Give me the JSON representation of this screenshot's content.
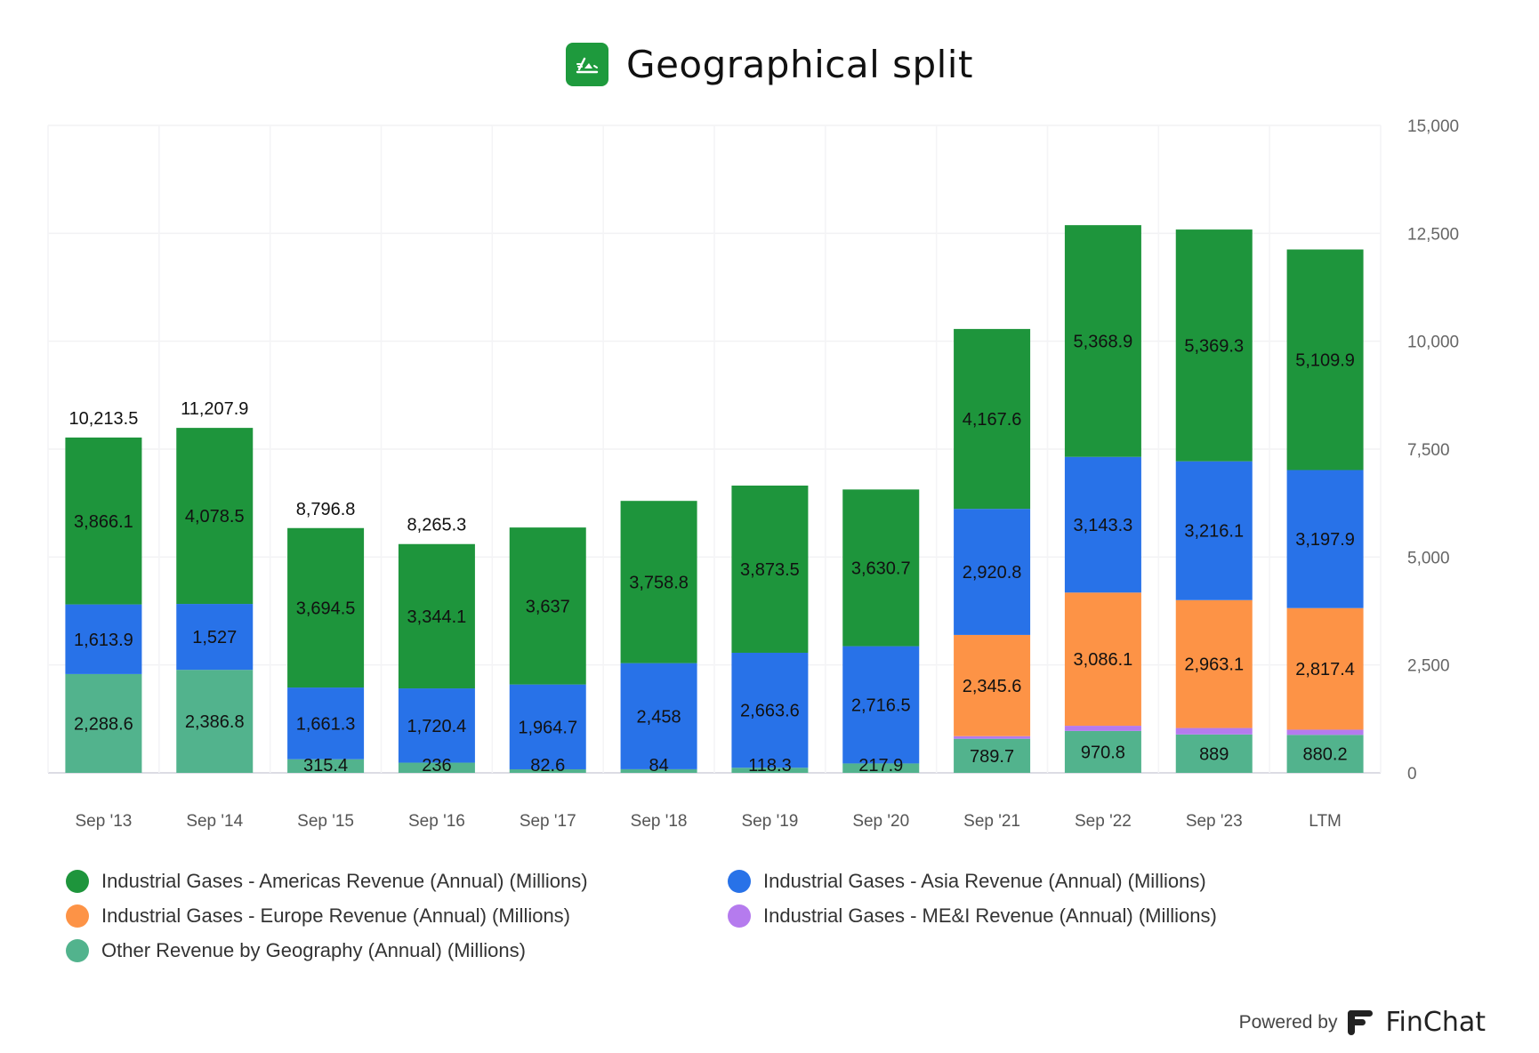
{
  "header": {
    "title": "Geographical split",
    "icon": "chart-app-icon",
    "icon_color": "#1e9a3d"
  },
  "footer": {
    "powered_by": "Powered by",
    "brand": "FinChat",
    "brand_icon": "finchat-logo-icon"
  },
  "chart_data": {
    "type": "bar",
    "stacked": true,
    "title": "Geographical split",
    "xlabel": "",
    "ylabel": "",
    "ylim": [
      0,
      15000
    ],
    "yticks": [
      0,
      2500,
      5000,
      7500,
      10000,
      12500,
      15000
    ],
    "ytick_labels": [
      "0",
      "2,500",
      "5,000",
      "7,500",
      "10,000",
      "12,500",
      "15,000"
    ],
    "y_axis_position": "right",
    "grid": true,
    "legend_position": "bottom",
    "categories": [
      "Sep '13",
      "Sep '14",
      "Sep '15",
      "Sep '16",
      "Sep '17",
      "Sep '18",
      "Sep '19",
      "Sep '20",
      "Sep '21",
      "Sep '22",
      "Sep '23",
      "LTM"
    ],
    "series": [
      {
        "name": "Other Revenue by Geography (Annual) (Millions)",
        "color": "#52b38d",
        "values": [
          2288.6,
          2386.8,
          315.4,
          236,
          82.6,
          84,
          118.3,
          217.9,
          789.7,
          970.8,
          889,
          880.2
        ],
        "labels": [
          "2,288.6",
          "2,386.8",
          "315.4",
          "236",
          "82.6",
          "84",
          "118.3",
          "217.9",
          "789.7",
          "970.8",
          "889",
          "880.2"
        ]
      },
      {
        "name": "Industrial Gases - ME&I Revenue (Annual) (Millions)",
        "color": "#b57bee",
        "values": [
          0,
          0,
          0,
          0,
          0,
          0,
          0,
          0,
          60,
          120,
          150,
          120
        ],
        "labels": [
          "",
          "",
          "",
          "",
          "",
          "",
          "",
          "",
          "",
          "",
          "",
          ""
        ]
      },
      {
        "name": "Industrial Gases - Europe Revenue (Annual) (Millions)",
        "color": "#fd9346",
        "values": [
          0,
          0,
          0,
          0,
          0,
          0,
          0,
          0,
          2345.6,
          3086.1,
          2963.1,
          2817.4
        ],
        "labels": [
          "",
          "",
          "",
          "",
          "",
          "",
          "",
          "",
          "2,345.6",
          "3,086.1",
          "2,963.1",
          "2,817.4"
        ]
      },
      {
        "name": "Industrial Gases - Asia Revenue (Annual) (Millions)",
        "color": "#2872e8",
        "values": [
          1613.9,
          1527,
          1661.3,
          1720.4,
          1964.7,
          2458,
          2663.6,
          2716.5,
          2920.8,
          3143.3,
          3216.1,
          3197.9
        ],
        "labels": [
          "1,613.9",
          "1,527",
          "1,661.3",
          "1,720.4",
          "1,964.7",
          "2,458",
          "2,663.6",
          "2,716.5",
          "2,920.8",
          "3,143.3",
          "3,216.1",
          "3,197.9"
        ]
      },
      {
        "name": "Industrial Gases - Americas Revenue (Annual) (Millions)",
        "color": "#1e953c",
        "values": [
          3866.1,
          4078.5,
          3694.5,
          3344.1,
          3637,
          3758.8,
          3873.5,
          3630.7,
          4167.6,
          5368.9,
          5369.3,
          5109.9
        ],
        "labels": [
          "3,866.1",
          "4,078.5",
          "3,694.5",
          "3,344.1",
          "3,637",
          "3,758.8",
          "3,873.5",
          "3,630.7",
          "4,167.6",
          "5,368.9",
          "5,369.3",
          "5,109.9"
        ]
      }
    ],
    "total_labels": [
      "10,213.5",
      "11,207.9",
      "8,796.8",
      "8,265.3",
      "",
      "",
      "",
      "",
      "",
      "",
      "",
      ""
    ],
    "legend": [
      {
        "name": "Industrial Gases - Americas Revenue (Annual) (Millions)",
        "color": "#1e953c"
      },
      {
        "name": "Industrial Gases - Asia Revenue (Annual) (Millions)",
        "color": "#2872e8"
      },
      {
        "name": "Industrial Gases - Europe Revenue (Annual) (Millions)",
        "color": "#fd9346"
      },
      {
        "name": "Industrial Gases - ME&I Revenue (Annual) (Millions)",
        "color": "#b57bee"
      },
      {
        "name": "Other Revenue by Geography (Annual) (Millions)",
        "color": "#52b38d"
      }
    ]
  }
}
